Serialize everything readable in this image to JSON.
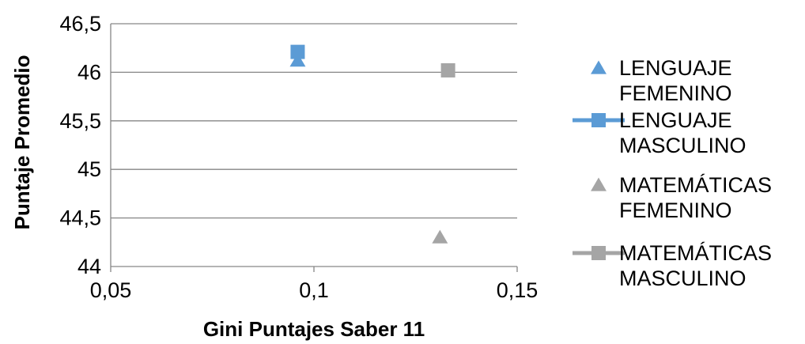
{
  "chart_data": {
    "type": "scatter",
    "xlabel": "Gini Puntajes Saber 11",
    "ylabel": "Puntaje Promedio",
    "xlim": [
      0.05,
      0.15
    ],
    "ylim": [
      44,
      46.5
    ],
    "x_ticks": [
      "0,05",
      "0,1",
      "0,15"
    ],
    "y_ticks": [
      "44",
      "44,5",
      "45",
      "45,5",
      "46",
      "46,5"
    ],
    "grid": "horizontal",
    "legend_position": "right",
    "series": [
      {
        "name": "LENGUAJE FEMENINO",
        "legend_lines": [
          "LENGUAJE",
          "FEMENINO"
        ],
        "marker": "triangle",
        "legend_line": false,
        "color": "#5b9bd5",
        "points": [
          {
            "x": 0.096,
            "y": 46.12
          }
        ]
      },
      {
        "name": "LENGUAJE MASCULINO",
        "legend_lines": [
          "LENGUAJE",
          "MASCULINO"
        ],
        "marker": "square",
        "legend_line": true,
        "color": "#5b9bd5",
        "points": [
          {
            "x": 0.096,
            "y": 46.21
          }
        ]
      },
      {
        "name": "MATEMÁTICAS FEMENINO",
        "legend_lines": [
          "MATEMÁTICAS",
          "FEMENINO"
        ],
        "marker": "triangle",
        "legend_line": false,
        "color": "#a5a5a5",
        "points": [
          {
            "x": 0.131,
            "y": 44.3
          }
        ]
      },
      {
        "name": "MATEMÁTICAS MASCULINO",
        "legend_lines": [
          "MATEMÁTICAS",
          "MASCULINO"
        ],
        "marker": "square",
        "legend_line": true,
        "color": "#a5a5a5",
        "points": [
          {
            "x": 0.133,
            "y": 46.02
          }
        ]
      }
    ]
  }
}
